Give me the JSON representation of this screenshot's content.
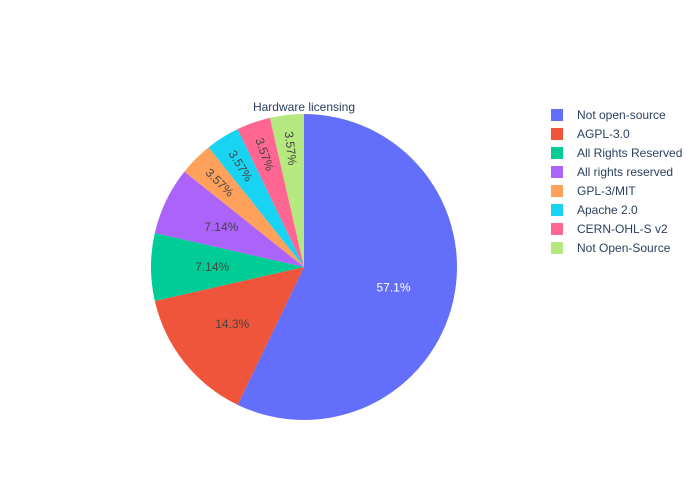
{
  "chart_data": {
    "type": "pie",
    "title": "Hardware licensing",
    "labels": [
      "Not open-source",
      "AGPL-3.0",
      "All Rights Reserved",
      "All rights reserved",
      "GPL-3/MIT",
      "Apache 2.0",
      "CERN-OHL-S v2",
      "Not Open-Source"
    ],
    "values": [
      16,
      4,
      2,
      2,
      1,
      1,
      1,
      1
    ],
    "percent_labels": [
      "57.1%",
      "14.3%",
      "7.14%",
      "7.14%",
      "3.57%",
      "3.57%",
      "3.57%",
      "3.57%"
    ],
    "colors": [
      "#636efa",
      "#ef553b",
      "#00cc96",
      "#ab63fa",
      "#ffa15a",
      "#19d3f3",
      "#ff6692",
      "#b6e880"
    ],
    "label_text_colors": [
      "#ffffff",
      "#444444",
      "#444444",
      "#444444",
      "#444444",
      "#444444",
      "#444444",
      "#444444"
    ],
    "direction": "clockwise",
    "start": "top",
    "legend_position": "right"
  }
}
